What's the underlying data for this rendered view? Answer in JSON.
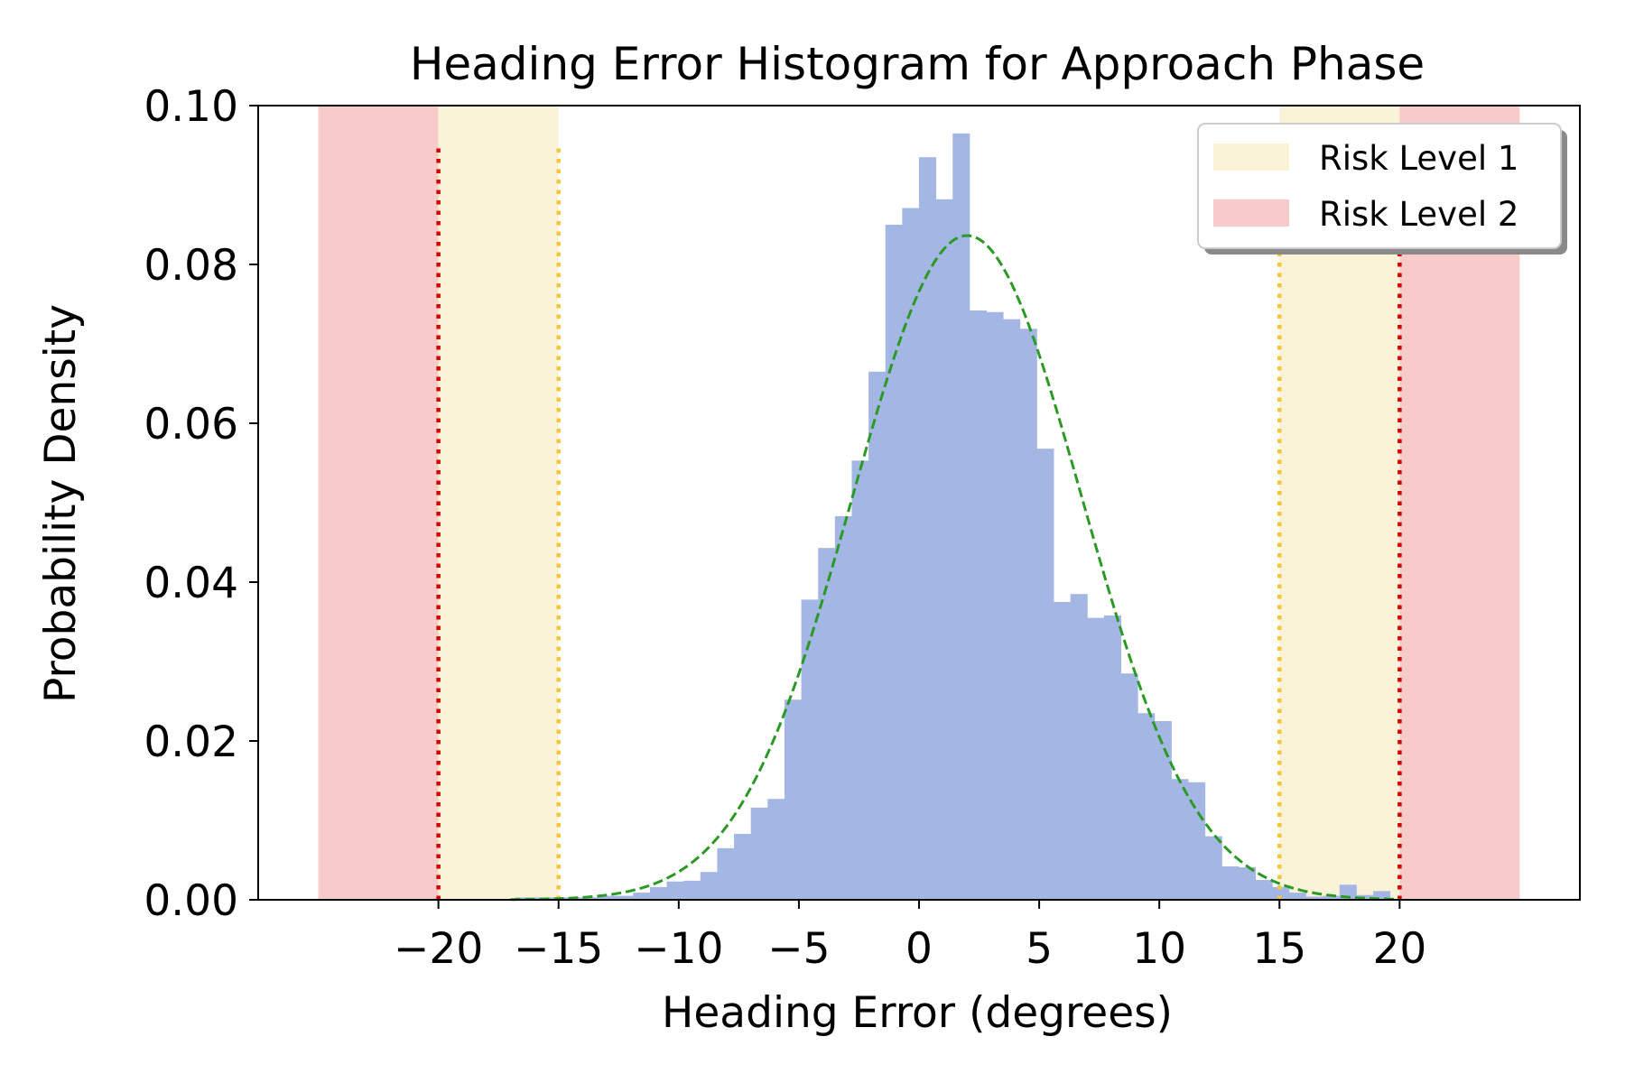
{
  "chart_data": {
    "type": "bar",
    "title": "Heading Error Histogram for Approach Phase",
    "xlabel": "Heading Error (degrees)",
    "ylabel": "Probability Density",
    "xlim": [
      -27.5,
      27.5
    ],
    "ylim": [
      0.0,
      0.1
    ],
    "xticks": [
      -20,
      -15,
      -10,
      -5,
      0,
      5,
      10,
      15,
      20
    ],
    "xtick_labels": [
      "−20",
      "−15",
      "−10",
      "−5",
      "0",
      "5",
      "10",
      "15",
      "20"
    ],
    "yticks": [
      0.0,
      0.02,
      0.04,
      0.06,
      0.08,
      0.1
    ],
    "ytick_labels": [
      "0.00",
      "0.02",
      "0.04",
      "0.06",
      "0.08",
      "0.10"
    ],
    "grid": false,
    "histogram": {
      "color": "#a4b6e3",
      "bins": [
        {
          "x0": -16.8,
          "x1": -16.1,
          "value": 0.0003
        },
        {
          "x0": -16.1,
          "x1": -15.4,
          "value": 0.0003
        },
        {
          "x0": -15.4,
          "x1": -14.7,
          "value": 0.0003
        },
        {
          "x0": -14.7,
          "x1": -14.0,
          "value": 0.0003
        },
        {
          "x0": -14.0,
          "x1": -13.3,
          "value": 0.0003
        },
        {
          "x0": -13.3,
          "x1": -12.6,
          "value": 0.0005
        },
        {
          "x0": -12.6,
          "x1": -11.9,
          "value": 0.0005
        },
        {
          "x0": -11.9,
          "x1": -11.2,
          "value": 0.0009
        },
        {
          "x0": -11.2,
          "x1": -10.5,
          "value": 0.0016
        },
        {
          "x0": -10.5,
          "x1": -9.8,
          "value": 0.0023
        },
        {
          "x0": -9.8,
          "x1": -9.1,
          "value": 0.0024
        },
        {
          "x0": -9.1,
          "x1": -8.4,
          "value": 0.0035
        },
        {
          "x0": -8.4,
          "x1": -7.7,
          "value": 0.0065
        },
        {
          "x0": -7.7,
          "x1": -7.0,
          "value": 0.0083
        },
        {
          "x0": -7.0,
          "x1": -6.3,
          "value": 0.0116
        },
        {
          "x0": -6.3,
          "x1": -5.6,
          "value": 0.0127
        },
        {
          "x0": -5.6,
          "x1": -4.9,
          "value": 0.0252
        },
        {
          "x0": -4.9,
          "x1": -4.2,
          "value": 0.0378
        },
        {
          "x0": -4.2,
          "x1": -3.5,
          "value": 0.0443
        },
        {
          "x0": -3.5,
          "x1": -2.8,
          "value": 0.0483
        },
        {
          "x0": -2.8,
          "x1": -2.1,
          "value": 0.0553
        },
        {
          "x0": -2.1,
          "x1": -1.4,
          "value": 0.0665
        },
        {
          "x0": -1.4,
          "x1": -0.7,
          "value": 0.085
        },
        {
          "x0": -0.7,
          "x1": 0.0,
          "value": 0.0871
        },
        {
          "x0": 0.0,
          "x1": 0.7,
          "value": 0.0935
        },
        {
          "x0": 0.7,
          "x1": 1.4,
          "value": 0.0882
        },
        {
          "x0": 1.4,
          "x1": 2.1,
          "value": 0.0965
        },
        {
          "x0": 2.1,
          "x1": 2.8,
          "value": 0.0742
        },
        {
          "x0": 2.8,
          "x1": 3.5,
          "value": 0.074
        },
        {
          "x0": 3.5,
          "x1": 4.2,
          "value": 0.0731
        },
        {
          "x0": 4.2,
          "x1": 4.9,
          "value": 0.0719
        },
        {
          "x0": 4.9,
          "x1": 5.6,
          "value": 0.0568
        },
        {
          "x0": 5.6,
          "x1": 6.3,
          "value": 0.0375
        },
        {
          "x0": 6.3,
          "x1": 7.0,
          "value": 0.0385
        },
        {
          "x0": 7.0,
          "x1": 7.7,
          "value": 0.0355
        },
        {
          "x0": 7.7,
          "x1": 8.4,
          "value": 0.0358
        },
        {
          "x0": 8.4,
          "x1": 9.1,
          "value": 0.0285
        },
        {
          "x0": 9.1,
          "x1": 9.8,
          "value": 0.0235
        },
        {
          "x0": 9.8,
          "x1": 10.5,
          "value": 0.0225
        },
        {
          "x0": 10.5,
          "x1": 11.2,
          "value": 0.0152
        },
        {
          "x0": 11.2,
          "x1": 11.9,
          "value": 0.0148
        },
        {
          "x0": 11.9,
          "x1": 12.6,
          "value": 0.008
        },
        {
          "x0": 12.6,
          "x1": 13.3,
          "value": 0.0042
        },
        {
          "x0": 13.3,
          "x1": 14.0,
          "value": 0.0041
        },
        {
          "x0": 14.0,
          "x1": 14.7,
          "value": 0.0025
        },
        {
          "x0": 14.7,
          "x1": 15.4,
          "value": 0.0016
        },
        {
          "x0": 15.4,
          "x1": 16.1,
          "value": 0.0009
        },
        {
          "x0": 16.1,
          "x1": 16.8,
          "value": 0.0004
        },
        {
          "x0": 16.8,
          "x1": 17.5,
          "value": 0.0005
        },
        {
          "x0": 17.5,
          "x1": 18.2,
          "value": 0.0019
        },
        {
          "x0": 18.2,
          "x1": 18.9,
          "value": 0.0006
        },
        {
          "x0": 18.9,
          "x1": 19.6,
          "value": 0.0011
        }
      ]
    },
    "fit_curve": {
      "type": "normal",
      "mean": 2.0,
      "std": 4.77,
      "x_range": [
        -17.0,
        20.0
      ],
      "color": "#2a9a24",
      "style": "dashed"
    },
    "risk_bands": [
      {
        "name": "Risk Level 2",
        "x0": -25.0,
        "x1": -20.0,
        "color": "#f8cbcb"
      },
      {
        "name": "Risk Level 1",
        "x0": -20.0,
        "x1": -15.0,
        "color": "#fbf3d8"
      },
      {
        "name": "Risk Level 1",
        "x0": 15.0,
        "x1": 20.0,
        "color": "#fbf3d8"
      },
      {
        "name": "Risk Level 2",
        "x0": 20.0,
        "x1": 25.0,
        "color": "#f8cbcb"
      }
    ],
    "threshold_lines": [
      {
        "x": -20,
        "color": "#d40000",
        "style": "dotted",
        "y_top": 0.095
      },
      {
        "x": -15,
        "color": "#f4c73a",
        "style": "dotted",
        "y_top": 0.095
      },
      {
        "x": 15,
        "color": "#f4c73a",
        "style": "dotted",
        "y_top": 0.095
      },
      {
        "x": 20,
        "color": "#d40000",
        "style": "dotted",
        "y_top": 0.095
      }
    ],
    "legend": {
      "position": "top-right",
      "entries": [
        {
          "label": "Risk Level 1",
          "color": "#fbf3d8"
        },
        {
          "label": "Risk Level 2",
          "color": "#f8cbcb"
        }
      ]
    }
  }
}
